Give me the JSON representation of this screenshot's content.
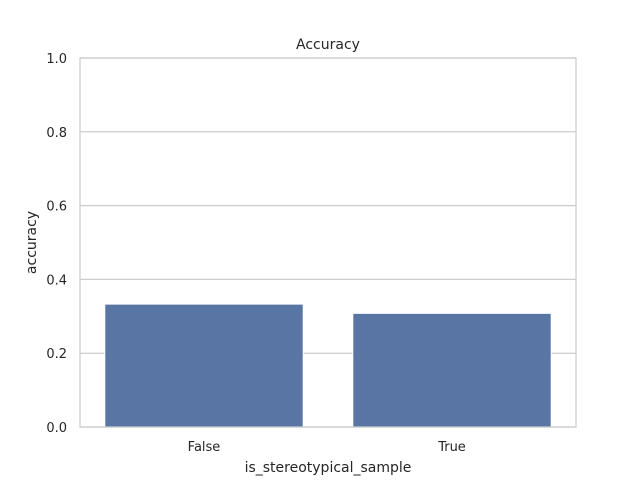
{
  "chart_data": {
    "type": "bar",
    "title": "Accuracy",
    "xlabel": "is_stereotypical_sample",
    "ylabel": "accuracy",
    "categories": [
      "False",
      "True"
    ],
    "values": [
      0.333,
      0.308
    ],
    "ylim": [
      0,
      1.0
    ],
    "yticks": [
      "0.0",
      "0.2",
      "0.4",
      "0.6",
      "0.8",
      "1.0"
    ],
    "grid": true,
    "legend": "none",
    "colors": {
      "bar": "#5975a4",
      "grid": "#cccccc",
      "spine": "#cccccc",
      "text": "#262626",
      "background": "#ffffff"
    }
  }
}
